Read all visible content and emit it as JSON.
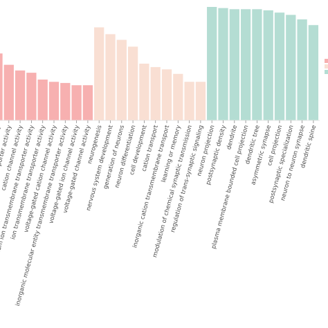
{
  "chart_data": {
    "type": "bar",
    "ylim": [
      0,
      1
    ],
    "grid": false,
    "legend": "right",
    "groups": [
      {
        "color": "#f7b0b0",
        "categories": [
          "ion transmembrane transporter activity",
          "cation transmembrane transporter activity",
          "cation channel activity",
          "calcium ion transmembrane transporter activity",
          "ion transmembrane transporter activity",
          "voltage-gated cation channel activity",
          "inorganic molecular entity transmembrane transporter activity",
          "voltage-gated ion channel activity",
          "voltage-gated channel activity"
        ],
        "values": [
          0.59,
          0.49,
          0.44,
          0.42,
          0.36,
          0.34,
          0.33,
          0.31,
          0.31
        ]
      },
      {
        "color": "#f9dfd3",
        "categories": [
          "neurogenesis",
          "nervous system development",
          "generation of neurons",
          "neuron differentiation",
          "cell development",
          "cation transport",
          "inorganic cation transmembrane transport",
          "learning or memory",
          "modulation of chemical synaptic transmission",
          "regulation of trans-synaptic signaling"
        ],
        "values": [
          0.82,
          0.76,
          0.71,
          0.65,
          0.5,
          0.47,
          0.45,
          0.41,
          0.34,
          0.34
        ]
      },
      {
        "color": "#b4ddd3",
        "categories": [
          "neuron projection",
          "postsynaptic density",
          "dendrite",
          "plasma membrane bounded cell projection",
          "dendritic tree",
          "asymmetric synapse",
          "cell projection",
          "postsynaptic specialization",
          "neuron to neuron synapse",
          "dendritic spine"
        ],
        "values": [
          1.0,
          0.99,
          0.98,
          0.98,
          0.98,
          0.97,
          0.95,
          0.93,
          0.89,
          0.84
        ]
      }
    ],
    "legend_colors": [
      "#f7b0b0",
      "#f9dfd3",
      "#b4ddd3"
    ]
  }
}
